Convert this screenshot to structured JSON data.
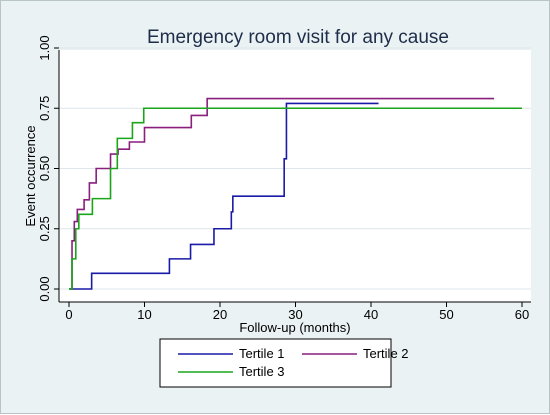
{
  "chart_data": {
    "type": "line",
    "step": true,
    "title": "Emergency room visit for any cause",
    "xlabel": "Follow-up (months)",
    "ylabel": "Event occurrence",
    "xlim": [
      0,
      60
    ],
    "ylim": [
      0,
      1
    ],
    "xticks": [
      0,
      10,
      20,
      30,
      40,
      50,
      60
    ],
    "yticks": [
      0,
      0.25,
      0.5,
      0.75,
      1
    ],
    "ytick_labels": [
      "0.00",
      "0.25",
      "0.50",
      "0.75",
      "1.00"
    ],
    "grid": "y",
    "legend_position": "bottom",
    "series": [
      {
        "name": "Tertile 1",
        "color": "#1a1aa8",
        "x": [
          0,
          3,
          13.3,
          16.1,
          19.2,
          21.5,
          21.7,
          28.5,
          28.8,
          41.0
        ],
        "y": [
          0,
          0.065,
          0.125,
          0.185,
          0.25,
          0.32,
          0.385,
          0.54,
          0.77,
          0.77
        ]
      },
      {
        "name": "Tertile 2",
        "color": "#8a1f7d",
        "x": [
          0,
          0.4,
          0.7,
          1.1,
          2.0,
          2.7,
          3.6,
          5.5,
          6.5,
          8.0,
          10.0,
          16.2,
          18.3,
          56.3
        ],
        "y": [
          0,
          0.2,
          0.28,
          0.33,
          0.37,
          0.44,
          0.5,
          0.56,
          0.58,
          0.61,
          0.67,
          0.72,
          0.79,
          0.79
        ]
      },
      {
        "name": "Tertile 3",
        "color": "#1aa51a",
        "x": [
          0,
          0.4,
          0.9,
          1.3,
          3.1,
          5.5,
          6.4,
          8.4,
          9.9,
          60.0
        ],
        "y": [
          0,
          0.125,
          0.25,
          0.31,
          0.375,
          0.5,
          0.625,
          0.69,
          0.75,
          0.75
        ]
      }
    ]
  }
}
